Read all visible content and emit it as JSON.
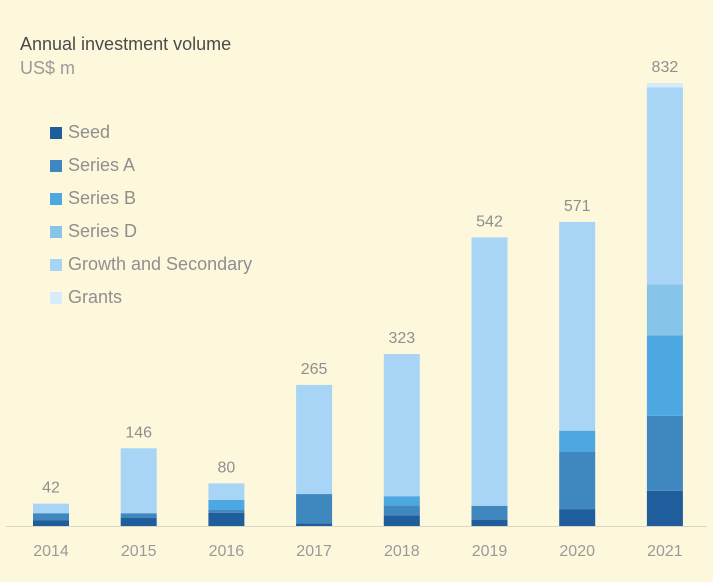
{
  "chart_data": {
    "type": "bar",
    "stacked": true,
    "title": "Annual investment volume",
    "ylabel": "US$ m",
    "categories": [
      "2014",
      "2015",
      "2016",
      "2017",
      "2018",
      "2019",
      "2020",
      "2021"
    ],
    "totals": [
      42,
      146,
      80,
      265,
      323,
      542,
      571,
      832
    ],
    "series": [
      {
        "name": "Seed",
        "color": "#1f5d9c",
        "values": [
          11,
          15,
          25,
          5,
          20,
          12,
          31,
          66
        ]
      },
      {
        "name": "Series A",
        "color": "#3f87bf",
        "values": [
          13,
          9,
          5,
          55,
          19,
          26,
          108,
          141
        ]
      },
      {
        "name": "Series B",
        "color": "#4da7e0",
        "values": [
          0,
          0,
          19,
          0,
          17,
          0,
          40,
          151
        ]
      },
      {
        "name": "Series D",
        "color": "#87c4ea",
        "values": [
          0,
          0,
          0,
          0,
          0,
          0,
          0,
          96
        ]
      },
      {
        "name": "Growth and Secondary",
        "color": "#a8d4f5",
        "values": [
          18,
          122,
          31,
          205,
          267,
          504,
          392,
          370
        ]
      },
      {
        "name": "Grants",
        "color": "#d6ecfb",
        "values": [
          0,
          0,
          0,
          0,
          0,
          0,
          0,
          8
        ]
      }
    ],
    "ylim": [
      0,
      832
    ],
    "grid": false,
    "legend_position": "top-left"
  }
}
